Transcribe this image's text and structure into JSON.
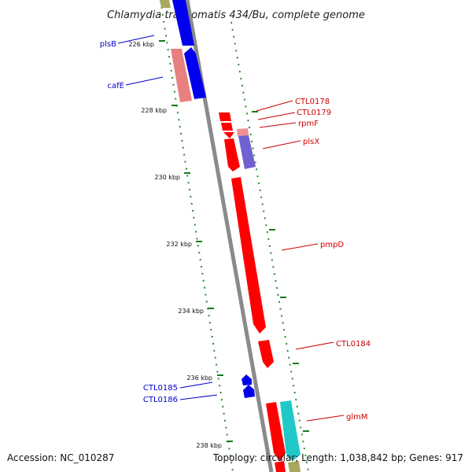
{
  "title": "Chlamydia trachomatis 434/Bu, complete genome",
  "footer": {
    "accession": "Accession: NC_010287",
    "topology": "Topology: circular; Length: 1,038,842 bp; Genes: 917"
  },
  "ticks": [
    "226 kbp",
    "228 kbp",
    "230 kbp",
    "232 kbp",
    "234 kbp",
    "236 kbp",
    "238 kbp"
  ],
  "colors": {
    "backbone": "#8a8a8a",
    "tick": "#1a7a1a",
    "reverse_label": "#0000cc",
    "forward_label": "#cc0000"
  },
  "genes": [
    {
      "name": "plsB",
      "strand": "reverse"
    },
    {
      "name": "cafE",
      "strand": "reverse"
    },
    {
      "name": "CTL0178",
      "strand": "forward"
    },
    {
      "name": "CTL0179",
      "strand": "forward"
    },
    {
      "name": "rpmF",
      "strand": "forward"
    },
    {
      "name": "plsX",
      "strand": "forward"
    },
    {
      "name": "pmpD",
      "strand": "forward"
    },
    {
      "name": "CTL0184",
      "strand": "forward"
    },
    {
      "name": "CTL0185",
      "strand": "reverse"
    },
    {
      "name": "CTL0186",
      "strand": "reverse"
    },
    {
      "name": "glmM",
      "strand": "forward"
    }
  ]
}
